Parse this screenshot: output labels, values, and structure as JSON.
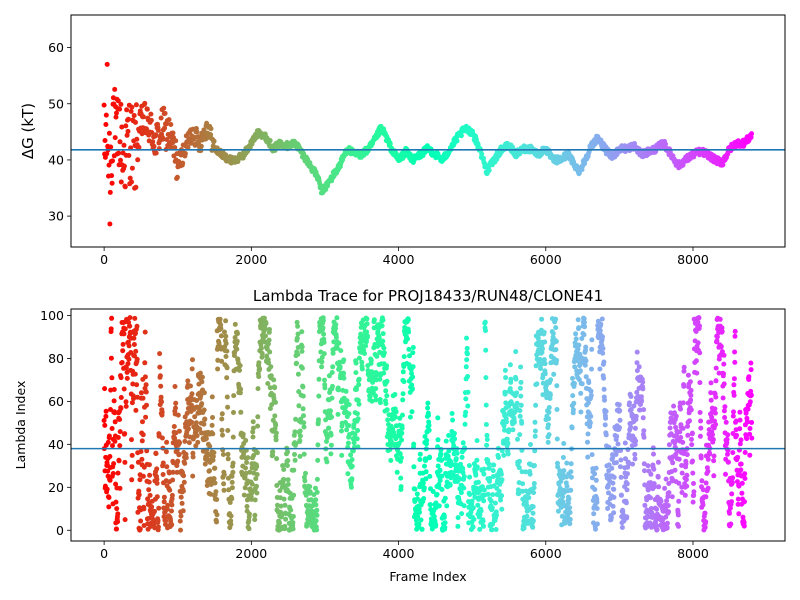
{
  "chart_data": [
    {
      "type": "scatter",
      "title": "",
      "xlabel": "",
      "ylabel": "ΔG (kT)",
      "xlim": [
        -450,
        9250
      ],
      "ylim": [
        24.5,
        65.8
      ],
      "xticks": [
        0,
        2000,
        4000,
        6000,
        8000
      ],
      "xtick_labels": [
        "0",
        "2000",
        "4000",
        "6000",
        "8000"
      ],
      "yticks": [
        30,
        40,
        50,
        60
      ],
      "ytick_labels": [
        "30",
        "40",
        "50",
        "60"
      ],
      "hline": 41.8,
      "hline_color": "#1f77b4",
      "colormap": "rainbow",
      "color_mapping": "frame index, late frames violet, early frames red",
      "grid": false,
      "n_frames": 8800,
      "series_path": [
        [
          0,
          40
        ],
        [
          40,
          47
        ],
        [
          80,
          36
        ],
        [
          120,
          50
        ],
        [
          160,
          42
        ],
        [
          200,
          46
        ],
        [
          260,
          40
        ],
        [
          340,
          44
        ],
        [
          420,
          41
        ],
        [
          520,
          47
        ],
        [
          620,
          46
        ],
        [
          700,
          43
        ],
        [
          800,
          46
        ],
        [
          900,
          44
        ],
        [
          1000,
          39
        ],
        [
          1100,
          42
        ],
        [
          1200,
          45
        ],
        [
          1300,
          43
        ],
        [
          1400,
          46
        ],
        [
          1500,
          42
        ],
        [
          1600,
          41
        ],
        [
          1700,
          40
        ],
        [
          1800,
          40
        ],
        [
          1900,
          41
        ],
        [
          2000,
          43
        ],
        [
          2100,
          45
        ],
        [
          2200,
          44
        ],
        [
          2300,
          42
        ],
        [
          2400,
          43
        ],
        [
          2500,
          42.5
        ],
        [
          2600,
          43
        ],
        [
          2700,
          41
        ],
        [
          2800,
          39
        ],
        [
          2900,
          37
        ],
        [
          2950,
          34.5
        ],
        [
          3000,
          35
        ],
        [
          3100,
          37
        ],
        [
          3200,
          39
        ],
        [
          3300,
          42
        ],
        [
          3400,
          41
        ],
        [
          3500,
          41
        ],
        [
          3600,
          42
        ],
        [
          3700,
          44
        ],
        [
          3750,
          45.5
        ],
        [
          3800,
          45
        ],
        [
          3900,
          42
        ],
        [
          4000,
          40
        ],
        [
          4100,
          41.5
        ],
        [
          4200,
          40
        ],
        [
          4300,
          41
        ],
        [
          4400,
          42
        ],
        [
          4500,
          41
        ],
        [
          4600,
          40
        ],
        [
          4700,
          42
        ],
        [
          4800,
          44
        ],
        [
          4900,
          45.5
        ],
        [
          5000,
          45
        ],
        [
          5100,
          42
        ],
        [
          5200,
          38
        ],
        [
          5300,
          40
        ],
        [
          5400,
          42
        ],
        [
          5500,
          42.5
        ],
        [
          5600,
          41
        ],
        [
          5700,
          42
        ],
        [
          5800,
          42
        ],
        [
          5900,
          41
        ],
        [
          6000,
          42
        ],
        [
          6100,
          40
        ],
        [
          6200,
          40
        ],
        [
          6300,
          41
        ],
        [
          6450,
          38
        ],
        [
          6500,
          39
        ],
        [
          6600,
          42
        ],
        [
          6700,
          44
        ],
        [
          6800,
          42
        ],
        [
          6900,
          40.5
        ],
        [
          7000,
          42
        ],
        [
          7100,
          42
        ],
        [
          7200,
          42.5
        ],
        [
          7300,
          41
        ],
        [
          7400,
          41.5
        ],
        [
          7500,
          42
        ],
        [
          7600,
          43
        ],
        [
          7700,
          41
        ],
        [
          7800,
          39
        ],
        [
          7900,
          40
        ],
        [
          8000,
          41
        ],
        [
          8100,
          41.5
        ],
        [
          8200,
          41
        ],
        [
          8300,
          40
        ],
        [
          8400,
          39.5
        ],
        [
          8500,
          42
        ],
        [
          8600,
          43
        ],
        [
          8700,
          43
        ],
        [
          8800,
          44.5
        ]
      ]
    },
    {
      "type": "scatter",
      "title": "Lambda Trace for PROJ18433/RUN48/CLONE41",
      "xlabel": "Frame Index",
      "ylabel": "Lambda Index",
      "xlim": [
        -450,
        9250
      ],
      "ylim": [
        -5,
        103
      ],
      "xticks": [
        0,
        2000,
        4000,
        6000,
        8000
      ],
      "xtick_labels": [
        "0",
        "2000",
        "4000",
        "6000",
        "8000"
      ],
      "yticks": [
        0,
        20,
        40,
        60,
        80,
        100
      ],
      "ytick_labels": [
        "0",
        "20",
        "40",
        "60",
        "80",
        "100"
      ],
      "hline": 38,
      "hline_color": "#1f77b4",
      "colormap": "rainbow",
      "color_mapping": "frame index, late frames violet, early frames red",
      "grid": false,
      "n_frames": 8800,
      "value_range": [
        0,
        99
      ]
    }
  ]
}
